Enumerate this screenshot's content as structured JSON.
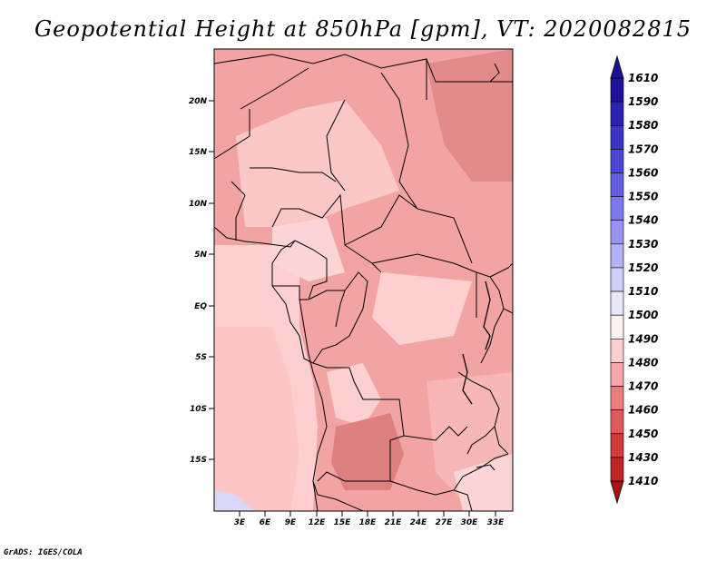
{
  "title": "Geopotential Height at 850hPa [gpm], VT: 2020082815",
  "credit": "GrADS: IGES/COLA",
  "lat_ticks": [
    "20N",
    "15N",
    "10N",
    "5N",
    "EQ",
    "5S",
    "10S",
    "15S"
  ],
  "lon_ticks": [
    "3E",
    "6E",
    "9E",
    "12E",
    "15E",
    "18E",
    "21E",
    "24E",
    "27E",
    "30E",
    "33E"
  ],
  "colorbar": {
    "labels": [
      "1610",
      "1590",
      "1580",
      "1570",
      "1560",
      "1550",
      "1540",
      "1530",
      "1520",
      "1510",
      "1500",
      "1490",
      "1480",
      "1470",
      "1460",
      "1450",
      "1430",
      "1410"
    ],
    "colors": [
      "#1c1296",
      "#2a23b0",
      "#3a34c4",
      "#4d48d4",
      "#625ee0",
      "#7a78ea",
      "#9795f0",
      "#b3b2f5",
      "#cfcff9",
      "#e8e8fc",
      "#fff0f0",
      "#fcd0d0",
      "#f5a6a6",
      "#e97f7f",
      "#de5c5c",
      "#d03c3c",
      "#c02424",
      "#a51616"
    ]
  },
  "map": {
    "field": "Geopotential Height 850hPa",
    "region": "Central Africa"
  }
}
